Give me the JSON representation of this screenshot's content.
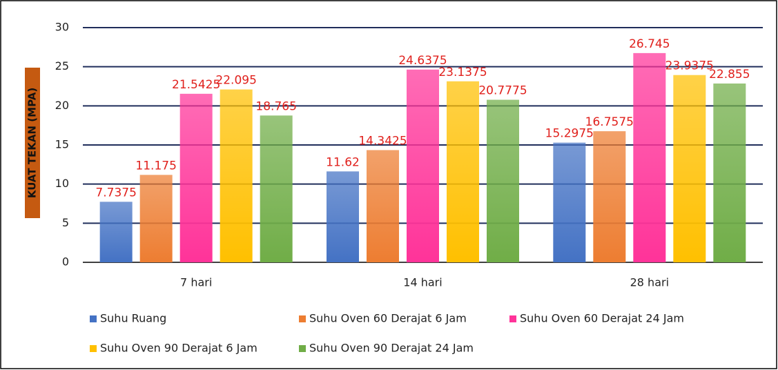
{
  "chart_data": {
    "type": "bar",
    "y_label": "KUAT TEKAN (MPA)",
    "categories": [
      "7 hari",
      "14 hari",
      "28 hari"
    ],
    "series": [
      {
        "name": "Suhu Ruang",
        "color": "#4472c4",
        "values": [
          7.7375,
          11.62,
          15.2975
        ]
      },
      {
        "name": "Suhu Oven 60 Derajat 6 Jam",
        "color": "#ed7d31",
        "values": [
          11.175,
          14.3425,
          16.7575
        ]
      },
      {
        "name": "Suhu Oven 60 Derajat 24 Jam",
        "color": "#ff3399",
        "values": [
          21.5425,
          24.6375,
          26.745
        ]
      },
      {
        "name": "Suhu Oven 90 Derajat 6 Jam",
        "color": "#ffc000",
        "values": [
          22.095,
          23.1375,
          23.9375
        ]
      },
      {
        "name": "Suhu Oven 90 Derajat 24 Jam",
        "color": "#70ad47",
        "values": [
          18.765,
          20.7775,
          22.855
        ]
      }
    ],
    "ylim": [
      0,
      30
    ],
    "yticks": [
      0,
      5,
      10,
      15,
      20,
      25,
      30
    ],
    "grid": true,
    "legend": "bottom"
  }
}
